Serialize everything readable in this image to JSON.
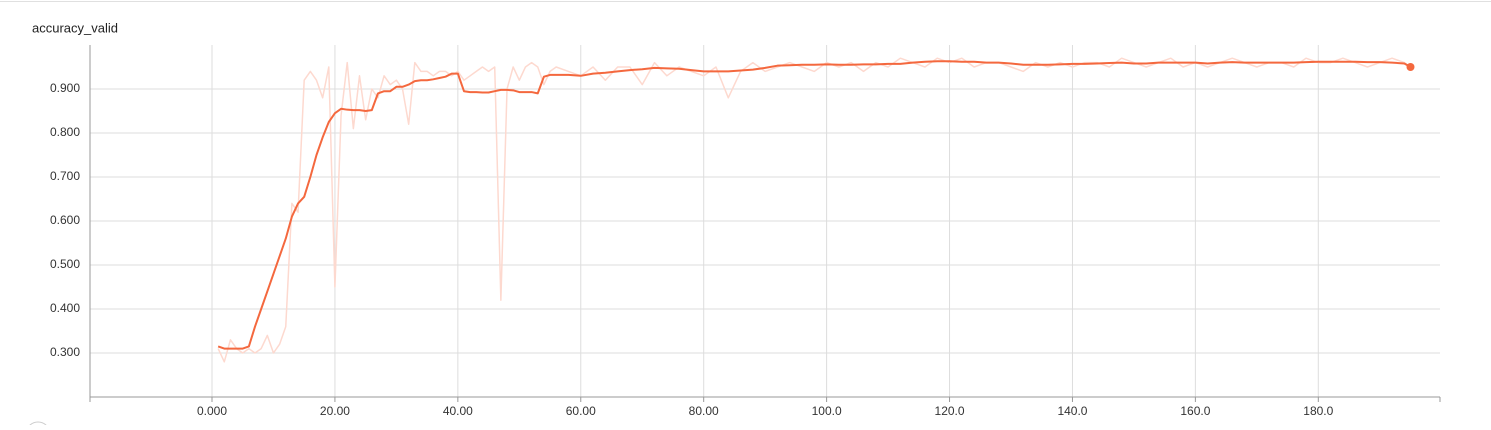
{
  "chart_data": {
    "type": "line",
    "title": "accuracy_valid",
    "x": [
      1,
      2,
      3,
      4,
      5,
      6,
      7,
      8,
      9,
      10,
      11,
      12,
      13,
      14,
      15,
      16,
      17,
      18,
      19,
      20,
      21,
      22,
      23,
      24,
      25,
      26,
      27,
      28,
      29,
      30,
      31,
      32,
      33,
      34,
      35,
      36,
      37,
      38,
      39,
      40,
      41,
      42,
      43,
      44,
      45,
      46,
      47,
      48,
      49,
      50,
      51,
      52,
      53,
      54,
      55,
      56,
      58,
      60,
      62,
      64,
      66,
      68,
      70,
      72,
      74,
      76,
      78,
      80,
      82,
      84,
      86,
      88,
      90,
      92,
      94,
      96,
      98,
      100,
      102,
      104,
      106,
      108,
      110,
      112,
      114,
      116,
      118,
      120,
      122,
      124,
      126,
      128,
      130,
      132,
      134,
      136,
      138,
      140,
      142,
      144,
      146,
      148,
      150,
      152,
      154,
      156,
      158,
      160,
      162,
      164,
      166,
      168,
      170,
      172,
      174,
      176,
      178,
      180,
      182,
      184,
      186,
      188,
      190,
      192,
      194,
      195
    ],
    "series": [
      {
        "color": "#fdd9cf",
        "width": 1.5,
        "values": [
          0.31,
          0.28,
          0.33,
          0.31,
          0.3,
          0.31,
          0.3,
          0.31,
          0.34,
          0.3,
          0.32,
          0.36,
          0.64,
          0.62,
          0.92,
          0.94,
          0.92,
          0.88,
          0.95,
          0.45,
          0.84,
          0.96,
          0.81,
          0.93,
          0.83,
          0.9,
          0.88,
          0.93,
          0.91,
          0.92,
          0.9,
          0.82,
          0.96,
          0.94,
          0.94,
          0.93,
          0.94,
          0.94,
          0.93,
          0.94,
          0.92,
          0.93,
          0.94,
          0.95,
          0.94,
          0.95,
          0.42,
          0.9,
          0.95,
          0.92,
          0.95,
          0.96,
          0.95,
          0.91,
          0.94,
          0.95,
          0.94,
          0.93,
          0.95,
          0.92,
          0.95,
          0.95,
          0.91,
          0.96,
          0.93,
          0.95,
          0.94,
          0.93,
          0.95,
          0.88,
          0.94,
          0.96,
          0.94,
          0.95,
          0.96,
          0.95,
          0.94,
          0.96,
          0.95,
          0.96,
          0.94,
          0.96,
          0.95,
          0.97,
          0.96,
          0.95,
          0.97,
          0.96,
          0.97,
          0.95,
          0.96,
          0.96,
          0.95,
          0.94,
          0.96,
          0.95,
          0.96,
          0.95,
          0.96,
          0.96,
          0.95,
          0.97,
          0.96,
          0.95,
          0.96,
          0.97,
          0.95,
          0.96,
          0.95,
          0.96,
          0.97,
          0.96,
          0.95,
          0.96,
          0.96,
          0.95,
          0.97,
          0.96,
          0.96,
          0.97,
          0.96,
          0.95,
          0.96,
          0.97,
          0.96,
          0.95
        ]
      },
      {
        "color": "#f4683e",
        "width": 2,
        "end_marker": true,
        "values": [
          0.315,
          0.31,
          0.31,
          0.31,
          0.31,
          0.315,
          0.36,
          0.4,
          0.44,
          0.48,
          0.52,
          0.56,
          0.61,
          0.64,
          0.655,
          0.7,
          0.75,
          0.79,
          0.825,
          0.845,
          0.855,
          0.853,
          0.852,
          0.852,
          0.85,
          0.852,
          0.89,
          0.895,
          0.895,
          0.905,
          0.905,
          0.91,
          0.918,
          0.92,
          0.92,
          0.922,
          0.925,
          0.928,
          0.935,
          0.935,
          0.895,
          0.893,
          0.893,
          0.892,
          0.892,
          0.895,
          0.898,
          0.898,
          0.897,
          0.893,
          0.893,
          0.893,
          0.89,
          0.928,
          0.932,
          0.932,
          0.932,
          0.93,
          0.935,
          0.937,
          0.94,
          0.943,
          0.945,
          0.948,
          0.947,
          0.946,
          0.943,
          0.94,
          0.94,
          0.94,
          0.942,
          0.944,
          0.948,
          0.953,
          0.954,
          0.955,
          0.955,
          0.956,
          0.955,
          0.955,
          0.956,
          0.956,
          0.957,
          0.957,
          0.96,
          0.962,
          0.963,
          0.963,
          0.962,
          0.962,
          0.96,
          0.96,
          0.958,
          0.955,
          0.955,
          0.955,
          0.956,
          0.957,
          0.957,
          0.958,
          0.959,
          0.96,
          0.958,
          0.958,
          0.96,
          0.96,
          0.96,
          0.96,
          0.958,
          0.96,
          0.961,
          0.96,
          0.96,
          0.96,
          0.96,
          0.96,
          0.961,
          0.962,
          0.962,
          0.962,
          0.962,
          0.961,
          0.961,
          0.96,
          0.958,
          0.95
        ]
      }
    ],
    "xlim": [
      -19.85,
      199.8
    ],
    "xticks": [
      {
        "value": 0,
        "label": "0.000"
      },
      {
        "value": 20,
        "label": "20.00"
      },
      {
        "value": 40,
        "label": "40.00"
      },
      {
        "value": 60,
        "label": "60.00"
      },
      {
        "value": 80,
        "label": "80.00"
      },
      {
        "value": 100,
        "label": "100.0"
      },
      {
        "value": 120,
        "label": "120.0"
      },
      {
        "value": 140,
        "label": "140.0"
      },
      {
        "value": 160,
        "label": "160.0"
      },
      {
        "value": 180,
        "label": "180.0"
      }
    ],
    "ylim": [
      0.2,
      1.0
    ],
    "yticks": [
      {
        "value": 0.3,
        "label": "0.300"
      },
      {
        "value": 0.4,
        "label": "0.400"
      },
      {
        "value": 0.5,
        "label": "0.500"
      },
      {
        "value": 0.6,
        "label": "0.600"
      },
      {
        "value": 0.7,
        "label": "0.700"
      },
      {
        "value": 0.8,
        "label": "0.800"
      },
      {
        "value": 0.9,
        "label": "0.900"
      }
    ],
    "grid": true
  }
}
